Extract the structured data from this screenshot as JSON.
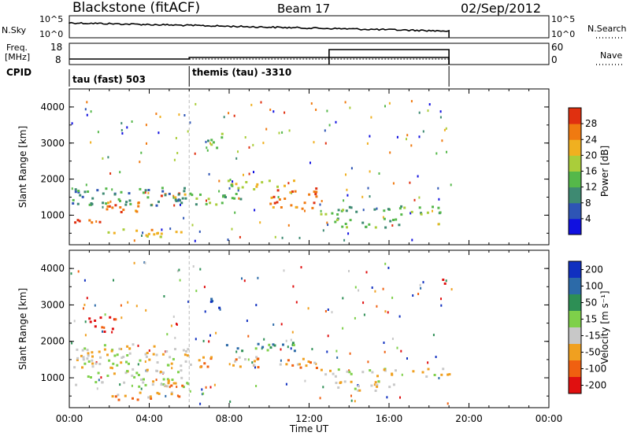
{
  "header": {
    "station": "Blackstone (fitACF)",
    "beam": "Beam 17",
    "date": "02/Sep/2012"
  },
  "nsky_panel": {
    "left_label": "N.Sky",
    "right_label": "N.Search",
    "left_ticks": [
      "10^5",
      "10^0"
    ],
    "right_ticks": [
      "10^5",
      "10^0"
    ]
  },
  "freq_panel": {
    "left_label_line1": "Freq.",
    "left_label_line2": "[MHz]",
    "right_label": "Nave",
    "left_ticks": [
      "18",
      "8"
    ],
    "right_ticks": [
      "60",
      "0"
    ]
  },
  "cpid": {
    "label": "CPID",
    "segments": [
      {
        "text": "tau (fast) 503",
        "start_hour": 0
      },
      {
        "text": "themis (tau) -3310",
        "start_hour": 6
      }
    ]
  },
  "chart_data": [
    {
      "type": "heatmap",
      "panel": "power",
      "xlabel": "",
      "ylabel": "Slant Range [km]",
      "xlim": [
        0,
        24
      ],
      "ylim": [
        180,
        4500
      ],
      "yticks": [
        "1000",
        "2000",
        "3000",
        "4000"
      ],
      "colorbar": {
        "label": "Power [dB]",
        "ticks": [
          "4",
          "8",
          "12",
          "16",
          "20",
          "24",
          "28"
        ],
        "colors": [
          "#1010e0",
          "#2e55b5",
          "#3e8a72",
          "#55b84a",
          "#aacd3a",
          "#f0b020",
          "#f07a10",
          "#e03010"
        ]
      },
      "regions": [
        {
          "t0": 0.2,
          "t1": 1.8,
          "r0": 780,
          "r1": 1000,
          "level": 7
        },
        {
          "t0": 1.8,
          "t1": 4.5,
          "r0": 1100,
          "r1": 1400,
          "level": 6
        },
        {
          "t0": 4.5,
          "t1": 5.9,
          "r0": 1500,
          "r1": 1700,
          "level": 6
        },
        {
          "t0": 0.0,
          "t1": 5.9,
          "r0": 1300,
          "r1": 1800,
          "level": 2
        },
        {
          "t0": 1.8,
          "t1": 5.9,
          "r0": 420,
          "r1": 640,
          "level": 5
        },
        {
          "t0": 6.0,
          "t1": 8.8,
          "r0": 1300,
          "r1": 1650,
          "level": 3
        },
        {
          "t0": 7.8,
          "t1": 11.3,
          "r0": 1750,
          "r1": 2000,
          "level": 4
        },
        {
          "t0": 10.0,
          "t1": 12.4,
          "r0": 1200,
          "r1": 1800,
          "level": 6
        },
        {
          "t0": 12.4,
          "t1": 19.0,
          "r0": 1050,
          "r1": 1280,
          "level": 3
        },
        {
          "t0": 13.2,
          "t1": 16.5,
          "r0": 650,
          "r1": 950,
          "level": 3
        },
        {
          "t0": 6.8,
          "t1": 7.6,
          "r0": 2850,
          "r1": 3300,
          "level": 3
        }
      ]
    },
    {
      "type": "heatmap",
      "panel": "velocity",
      "xlabel": "Time UT",
      "ylabel": "Slant Range [km]",
      "xlim": [
        0,
        24
      ],
      "ylim": [
        180,
        4500
      ],
      "xticks": [
        "00:00",
        "04:00",
        "08:00",
        "12:00",
        "16:00",
        "20:00",
        "00:00"
      ],
      "yticks": [
        "1000",
        "2000",
        "3000",
        "4000"
      ],
      "colorbar": {
        "label": "Velocity [m s⁻¹]",
        "ticks": [
          "200",
          "100",
          "50",
          "15",
          "-15",
          "-50",
          "-100",
          "-200"
        ],
        "colors": [
          "#1030c0",
          "#2c6aa8",
          "#2d8f55",
          "#7ed04a",
          "#c8c8c8",
          "#f0a020",
          "#f06010",
          "#e01010"
        ]
      },
      "regions": [
        {
          "t0": 0.2,
          "t1": 5.9,
          "r0": 780,
          "r1": 1950,
          "level": 4
        },
        {
          "t0": 1.8,
          "t1": 5.9,
          "r0": 420,
          "r1": 640,
          "level": 5
        },
        {
          "t0": 4.5,
          "t1": 5.9,
          "r0": 700,
          "r1": 850,
          "level": 5
        },
        {
          "t0": 7.8,
          "t1": 11.3,
          "r0": 1750,
          "r1": 2000,
          "level": 2
        },
        {
          "t0": 6.0,
          "t1": 12.4,
          "r0": 1300,
          "r1": 1600,
          "level": 5
        },
        {
          "t0": 12.4,
          "t1": 19.0,
          "r0": 1050,
          "r1": 1280,
          "level": 4
        },
        {
          "t0": 13.2,
          "t1": 16.5,
          "r0": 650,
          "r1": 950,
          "level": 4
        },
        {
          "t0": 0.9,
          "t1": 2.3,
          "r0": 2250,
          "r1": 2700,
          "level": 7
        },
        {
          "t0": 6.9,
          "t1": 7.5,
          "r0": 2900,
          "r1": 3300,
          "level": 0
        },
        {
          "t0": 18.6,
          "t1": 19.0,
          "r0": 3550,
          "r1": 3800,
          "level": 7
        }
      ]
    }
  ]
}
